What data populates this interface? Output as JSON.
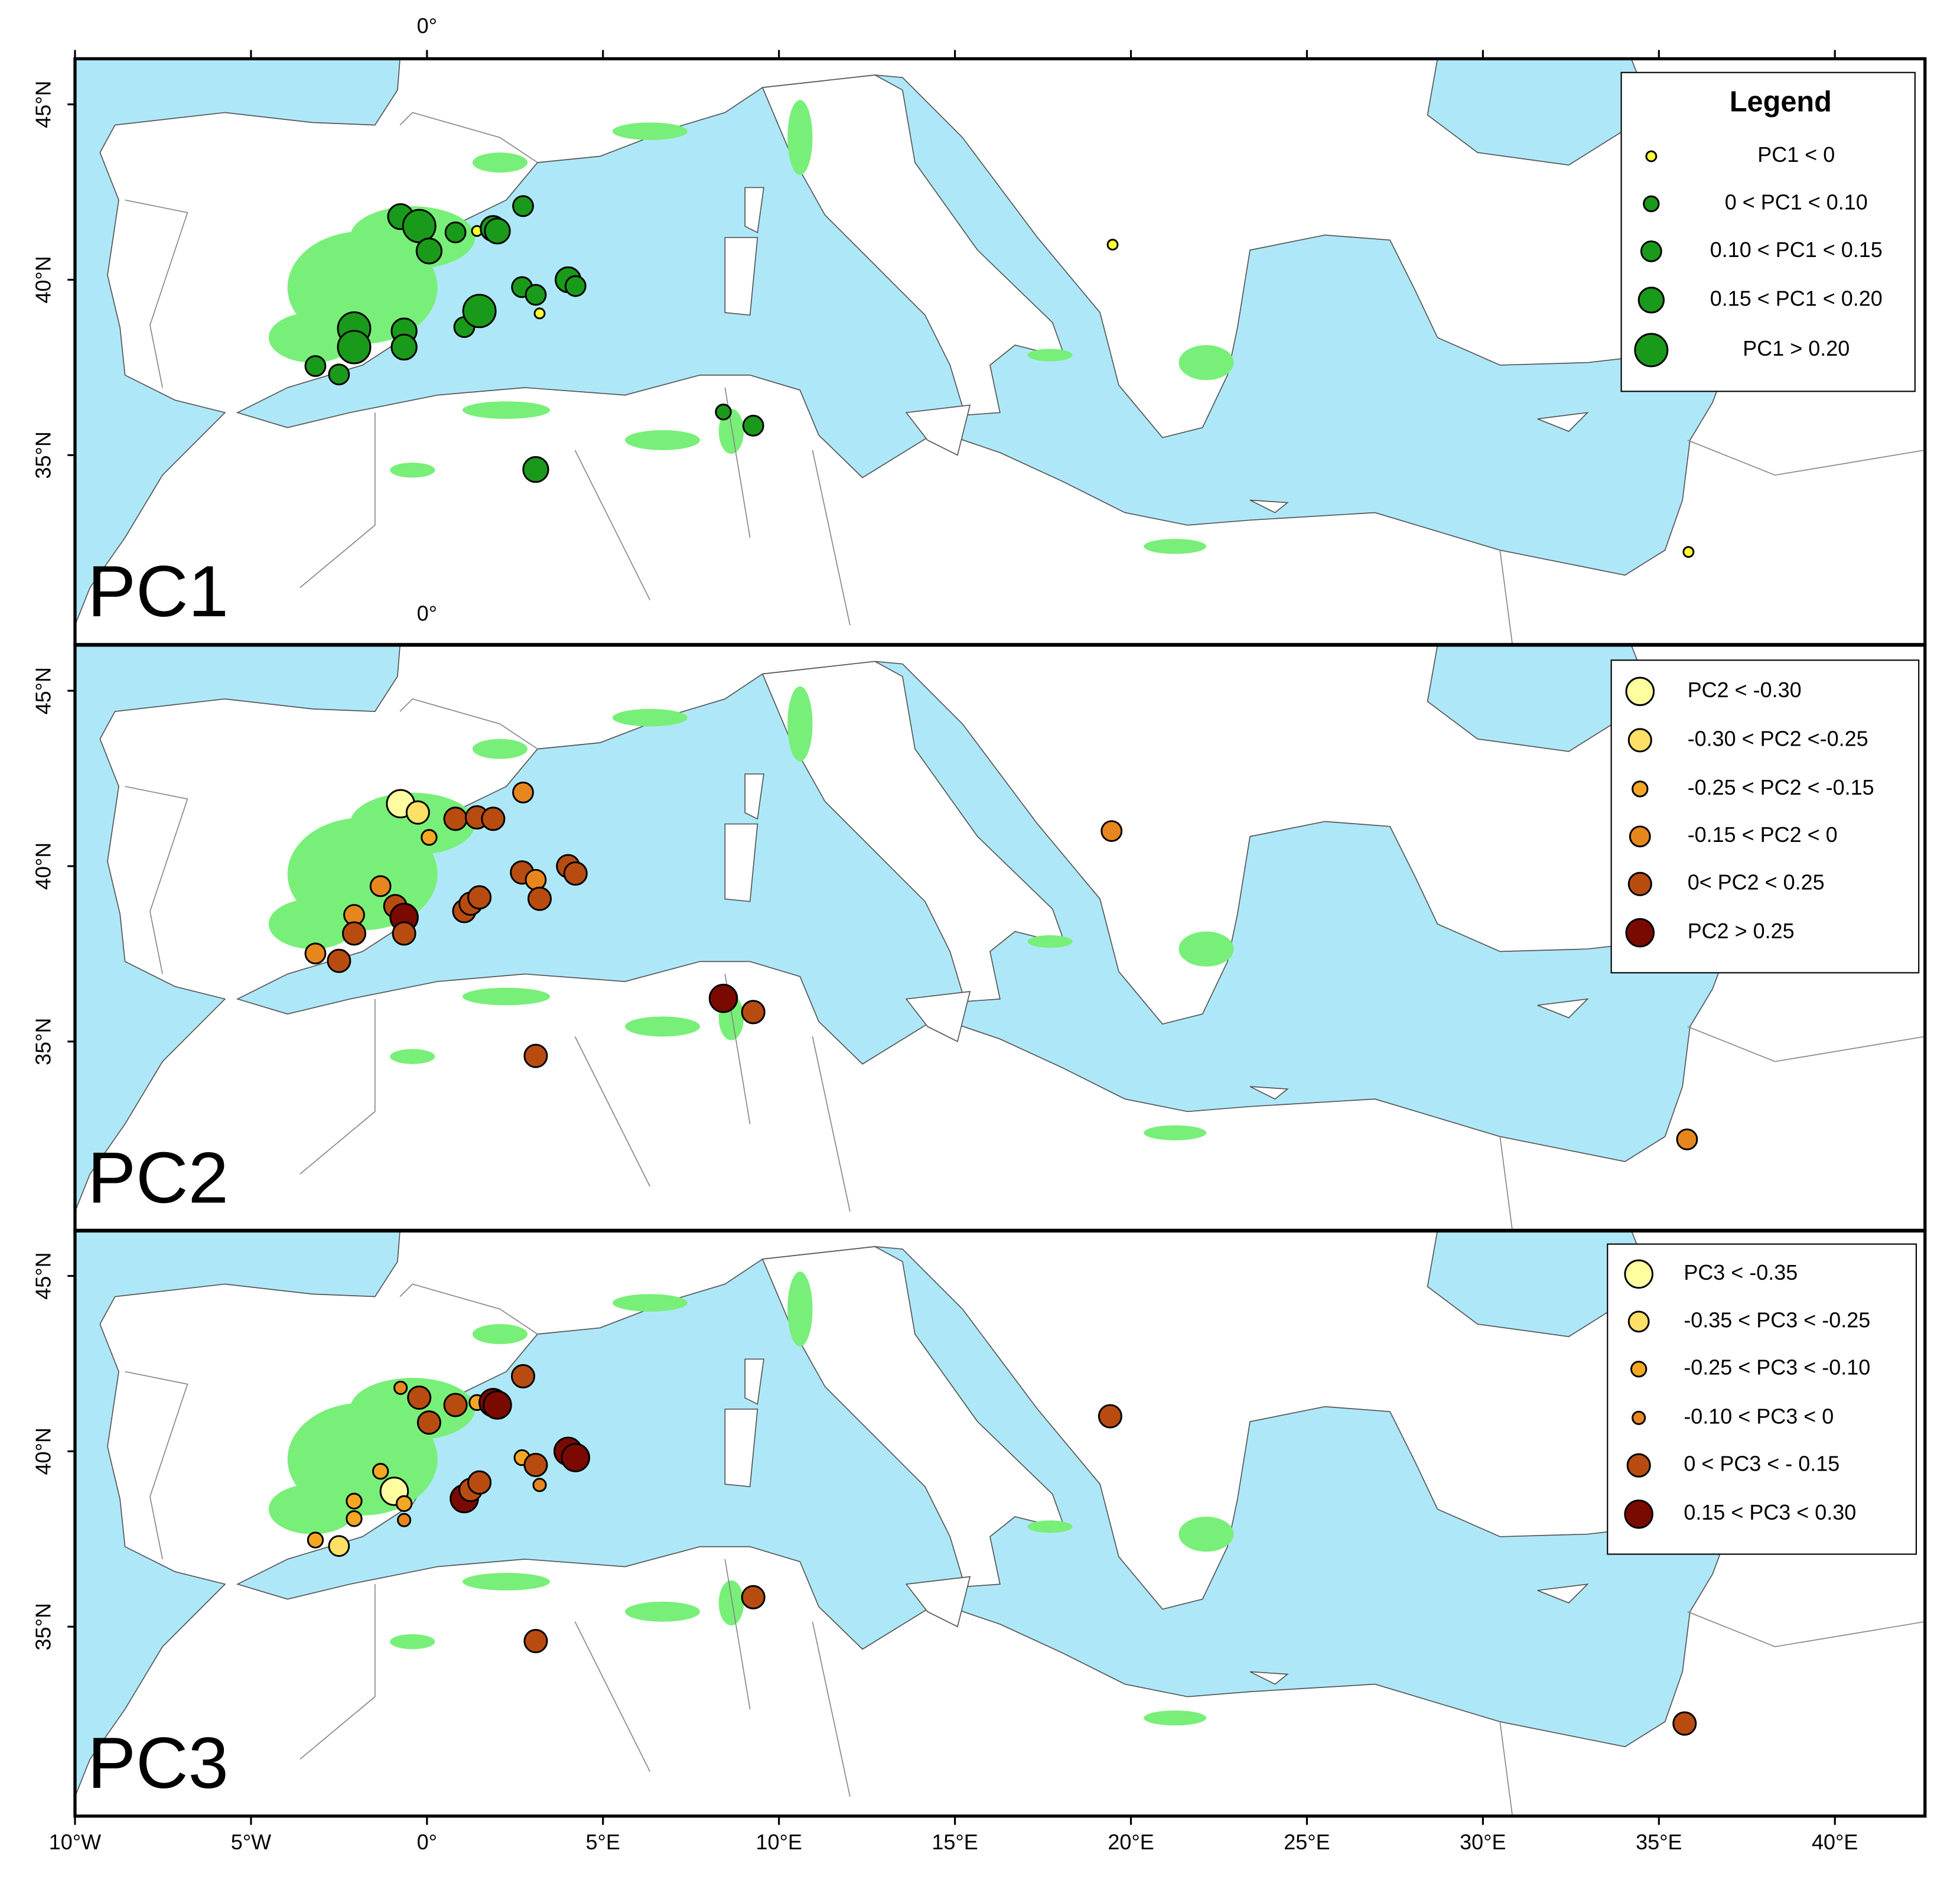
{
  "map": {
    "lonlim": [
      -10,
      42.56
    ],
    "latlim": [
      29.6,
      46.3
    ],
    "lon_ticks": [
      {
        "value": -10,
        "label": "10°W"
      },
      {
        "value": -5,
        "label": "5°W"
      },
      {
        "value": 0,
        "label": "0°"
      },
      {
        "value": 5,
        "label": "5°E"
      },
      {
        "value": 10,
        "label": "10°E"
      },
      {
        "value": 15,
        "label": "15°E"
      },
      {
        "value": 20,
        "label": "20°E"
      },
      {
        "value": 25,
        "label": "25°E"
      },
      {
        "value": 30,
        "label": "30°E"
      },
      {
        "value": 35,
        "label": "35°E"
      },
      {
        "value": 40,
        "label": "40°E"
      }
    ],
    "top_tick": {
      "value": 0,
      "label": "0°"
    },
    "lat_ticks": [
      {
        "value": 45,
        "label": "45°N"
      },
      {
        "value": 40,
        "label": "40°N"
      },
      {
        "value": 35,
        "label": "35°N"
      }
    ],
    "panels": [
      {
        "label": "PC1",
        "legend_title": "Legend",
        "legend": [
          {
            "label": "PC1 < 0",
            "color": "#ffff33"
          },
          {
            "label": "0 < PC1 < 0.10",
            "color": "#1a9a1a"
          },
          {
            "label": "0.10 < PC1 < 0.15",
            "color": "#1a9a1a"
          },
          {
            "label": "0.15 < PC1 < 0.20",
            "color": "#1a9a1a"
          },
          {
            "label": "PC1 > 0.20",
            "color": "#1a9a1a"
          }
        ],
        "points": [
          {
            "lon": -0.75,
            "lat": 41.8,
            "class": 3
          },
          {
            "lon": -0.22,
            "lat": 41.53,
            "class": 4
          },
          {
            "lon": 0.06,
            "lat": 40.82,
            "class": 3
          },
          {
            "lon": 0.81,
            "lat": 41.35,
            "class": 2
          },
          {
            "lon": 1.42,
            "lat": 41.39,
            "class": 0
          },
          {
            "lon": 1.88,
            "lat": 41.46,
            "class": 3
          },
          {
            "lon": 2.0,
            "lat": 41.39,
            "class": 3
          },
          {
            "lon": 2.73,
            "lat": 42.1,
            "class": 2
          },
          {
            "lon": -2.07,
            "lat": 38.61,
            "class": 4
          },
          {
            "lon": -2.07,
            "lat": 38.08,
            "class": 4
          },
          {
            "lon": -3.17,
            "lat": 37.54,
            "class": 2
          },
          {
            "lon": -2.5,
            "lat": 37.3,
            "class": 2
          },
          {
            "lon": -0.65,
            "lat": 38.54,
            "class": 3
          },
          {
            "lon": -0.65,
            "lat": 38.08,
            "class": 3
          },
          {
            "lon": 1.06,
            "lat": 38.65,
            "class": 2
          },
          {
            "lon": 1.49,
            "lat": 39.11,
            "class": 4
          },
          {
            "lon": 2.7,
            "lat": 39.79,
            "class": 2
          },
          {
            "lon": 3.09,
            "lat": 39.57,
            "class": 2
          },
          {
            "lon": 3.2,
            "lat": 39.04,
            "class": 0
          },
          {
            "lon": 4.01,
            "lat": 40.0,
            "class": 3
          },
          {
            "lon": 4.22,
            "lat": 39.82,
            "class": 2
          },
          {
            "lon": 8.42,
            "lat": 36.23,
            "class": 1
          },
          {
            "lon": 9.27,
            "lat": 35.84,
            "class": 2
          },
          {
            "lon": 3.09,
            "lat": 34.59,
            "class": 3
          },
          {
            "lon": 19.48,
            "lat": 41.0,
            "class": 0
          },
          {
            "lon": 35.84,
            "lat": 32.24,
            "class": 0
          }
        ]
      },
      {
        "label": "PC2",
        "legend": [
          {
            "label": "PC2 < -0.30",
            "color": "#ffffa0"
          },
          {
            "label": "-0.30 < PC2 <-0.25",
            "color": "#ffe066"
          },
          {
            "label": "-0.25 < PC2 < -0.15",
            "color": "#f5a623"
          },
          {
            "label": "-0.15 < PC2 < 0",
            "color": "#e8861e"
          },
          {
            "label": "0< PC2 < 0.25",
            "color": "#b84c10"
          },
          {
            "label": "PC2 > 0.25",
            "color": "#7a0a00"
          }
        ],
        "points": [
          {
            "lon": -0.75,
            "lat": 41.78,
            "class": 0
          },
          {
            "lon": -0.26,
            "lat": 41.53,
            "class": 1
          },
          {
            "lon": 0.06,
            "lat": 40.82,
            "class": 2
          },
          {
            "lon": 0.81,
            "lat": 41.35,
            "class": 4
          },
          {
            "lon": 1.42,
            "lat": 41.39,
            "class": 4
          },
          {
            "lon": 1.88,
            "lat": 41.35,
            "class": 4
          },
          {
            "lon": 2.73,
            "lat": 42.1,
            "class": 3
          },
          {
            "lon": -1.32,
            "lat": 39.43,
            "class": 3
          },
          {
            "lon": -2.07,
            "lat": 38.61,
            "class": 3
          },
          {
            "lon": -2.07,
            "lat": 38.08,
            "class": 4
          },
          {
            "lon": -3.17,
            "lat": 37.51,
            "class": 3
          },
          {
            "lon": -2.5,
            "lat": 37.3,
            "class": 4
          },
          {
            "lon": -0.9,
            "lat": 38.86,
            "class": 4
          },
          {
            "lon": -0.65,
            "lat": 38.54,
            "class": 5
          },
          {
            "lon": -0.65,
            "lat": 38.08,
            "class": 4
          },
          {
            "lon": 1.06,
            "lat": 38.72,
            "class": 4
          },
          {
            "lon": 1.24,
            "lat": 38.93,
            "class": 4
          },
          {
            "lon": 1.49,
            "lat": 39.11,
            "class": 4
          },
          {
            "lon": 2.7,
            "lat": 39.82,
            "class": 4
          },
          {
            "lon": 3.09,
            "lat": 39.61,
            "class": 3
          },
          {
            "lon": 3.2,
            "lat": 39.07,
            "class": 4
          },
          {
            "lon": 4.01,
            "lat": 40.0,
            "class": 4
          },
          {
            "lon": 4.22,
            "lat": 39.79,
            "class": 4
          },
          {
            "lon": 8.42,
            "lat": 36.23,
            "class": 5
          },
          {
            "lon": 9.27,
            "lat": 35.84,
            "class": 4
          },
          {
            "lon": 3.09,
            "lat": 34.59,
            "class": 4
          },
          {
            "lon": 19.45,
            "lat": 41.0,
            "class": 3
          },
          {
            "lon": 35.8,
            "lat": 32.21,
            "class": 3
          }
        ]
      },
      {
        "label": "PC3",
        "legend": [
          {
            "label": "PC3 < -0.35",
            "color": "#ffffa0"
          },
          {
            "label": "-0.35 < PC3 < -0.25",
            "color": "#ffe066"
          },
          {
            "label": "-0.25 < PC3 < -0.10",
            "color": "#f5a623"
          },
          {
            "label": "-0.10 < PC3 < 0",
            "color": "#e8861e"
          },
          {
            "label": "0 < PC3 < - 0.15",
            "color": "#b84c10"
          },
          {
            "label": "0.15 < PC3 < 0.30",
            "color": "#7a0a00"
          }
        ],
        "points": [
          {
            "lon": -0.75,
            "lat": 41.81,
            "class": 3
          },
          {
            "lon": -0.22,
            "lat": 41.53,
            "class": 4
          },
          {
            "lon": 0.06,
            "lat": 40.82,
            "class": 4
          },
          {
            "lon": 0.81,
            "lat": 41.32,
            "class": 4
          },
          {
            "lon": 1.42,
            "lat": 41.39,
            "class": 2
          },
          {
            "lon": 1.88,
            "lat": 41.39,
            "class": 5
          },
          {
            "lon": 2.0,
            "lat": 41.32,
            "class": 5
          },
          {
            "lon": 2.73,
            "lat": 42.14,
            "class": 4
          },
          {
            "lon": -1.32,
            "lat": 39.43,
            "class": 2
          },
          {
            "lon": -0.93,
            "lat": 38.86,
            "class": 0
          },
          {
            "lon": -0.65,
            "lat": 38.51,
            "class": 2
          },
          {
            "lon": -0.65,
            "lat": 38.04,
            "class": 3
          },
          {
            "lon": -2.07,
            "lat": 38.58,
            "class": 2
          },
          {
            "lon": -2.07,
            "lat": 38.08,
            "class": 2
          },
          {
            "lon": -3.17,
            "lat": 37.47,
            "class": 2
          },
          {
            "lon": -2.5,
            "lat": 37.3,
            "class": 1
          },
          {
            "lon": 1.06,
            "lat": 38.65,
            "class": 5
          },
          {
            "lon": 1.24,
            "lat": 38.9,
            "class": 4
          },
          {
            "lon": 1.49,
            "lat": 39.11,
            "class": 4
          },
          {
            "lon": 2.7,
            "lat": 39.82,
            "class": 2
          },
          {
            "lon": 3.09,
            "lat": 39.61,
            "class": 4
          },
          {
            "lon": 3.2,
            "lat": 39.04,
            "class": 3
          },
          {
            "lon": 4.01,
            "lat": 40.0,
            "class": 5
          },
          {
            "lon": 4.22,
            "lat": 39.82,
            "class": 5
          },
          {
            "lon": 9.27,
            "lat": 35.84,
            "class": 4
          },
          {
            "lon": 3.09,
            "lat": 34.59,
            "class": 4
          },
          {
            "lon": 19.41,
            "lat": 41.0,
            "class": 4
          },
          {
            "lon": 35.73,
            "lat": 32.24,
            "class": 4
          }
        ]
      }
    ]
  }
}
